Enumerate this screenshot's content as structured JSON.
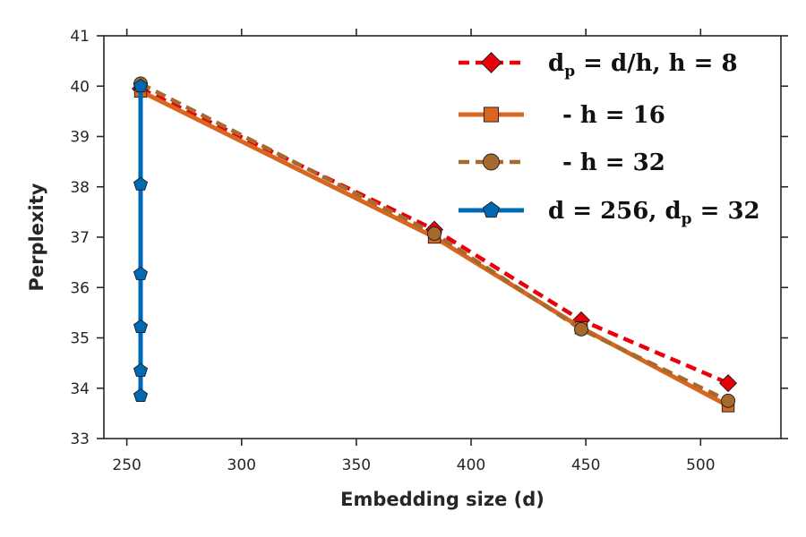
{
  "chart_data": {
    "type": "line",
    "title": "",
    "xlabel": "Embedding size (d)",
    "ylabel": "Perplexity",
    "xlim": [
      240,
      535
    ],
    "ylim": [
      33,
      41
    ],
    "xticks": [
      250,
      300,
      350,
      400,
      450,
      500
    ],
    "yticks": [
      33,
      34,
      35,
      36,
      37,
      38,
      39,
      40,
      41
    ],
    "grid": false,
    "legend_position": "top-right",
    "series": [
      {
        "name": "d_p = d/h, h = 8",
        "legend_parts": [
          "d",
          "p",
          " = d/h, h = ",
          "8"
        ],
        "color": "#e8000b",
        "line_style": "dashed",
        "marker": "diamond",
        "x": [
          256,
          384,
          448,
          512
        ],
        "y": [
          39.95,
          37.15,
          35.35,
          34.1
        ]
      },
      {
        "name": "- h = 16",
        "legend_parts": [
          "- h = ",
          "16"
        ],
        "color": "#d9661e",
        "line_style": "solid",
        "marker": "square",
        "x": [
          256,
          384,
          448,
          512
        ],
        "y": [
          39.9,
          37.0,
          35.2,
          33.65
        ]
      },
      {
        "name": "- h = 32",
        "legend_parts": [
          "- h = ",
          "32"
        ],
        "color": "#a66a2e",
        "line_style": "dashed",
        "marker": "circle",
        "x": [
          256,
          384,
          448,
          512
        ],
        "y": [
          40.05,
          37.07,
          35.17,
          33.75
        ]
      },
      {
        "name": "d = 256, d_p = 32",
        "legend_parts": [
          "d = ",
          "256",
          ", d",
          "p",
          " = ",
          "32"
        ],
        "color": "#0069b4",
        "line_style": "solid",
        "marker": "pentagon",
        "x": [
          256,
          256,
          256,
          256,
          256,
          256
        ],
        "y": [
          40.0,
          38.05,
          36.27,
          35.22,
          34.35,
          33.85
        ]
      }
    ]
  }
}
